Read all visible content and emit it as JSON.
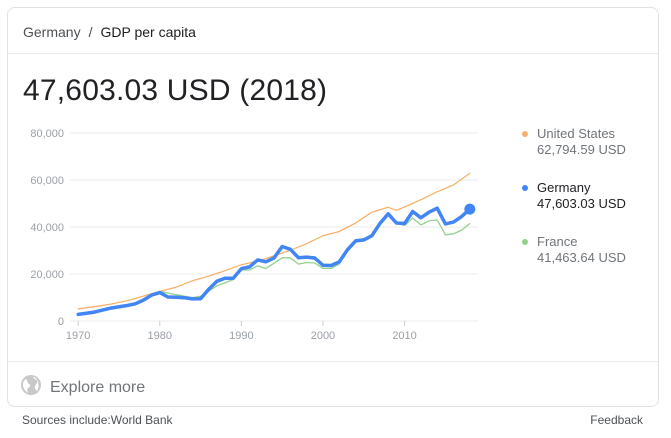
{
  "breadcrumb": {
    "parent": "Germany",
    "separator": "/",
    "current": "GDP per capita"
  },
  "headline": "47,603.03 USD (2018)",
  "legend": [
    {
      "name": "United States",
      "value": "62,794.59 USD",
      "color": "#f6b26b"
    },
    {
      "name": "Germany",
      "value": "47,603.03 USD",
      "color": "#4285f4"
    },
    {
      "name": "France",
      "value": "41,463.64 USD",
      "color": "#93d08c"
    }
  ],
  "explore": {
    "label": "Explore more",
    "icon": "globe-icon"
  },
  "footer": {
    "sources": "Sources include:World Bank",
    "feedback": "Feedback"
  },
  "chart_data": {
    "type": "line",
    "xlim": [
      1969,
      2019
    ],
    "ylim": [
      0,
      80000
    ],
    "x_ticks": [
      1970,
      1980,
      1990,
      2000,
      2010
    ],
    "y_ticks": [
      0,
      20000,
      40000,
      60000,
      80000
    ],
    "y_tick_labels": [
      "0",
      "20,000",
      "40,000",
      "60,000",
      "80,000"
    ],
    "grid": true,
    "highlight_series": "Germany",
    "series": [
      {
        "name": "United States",
        "color": "#f6b26b",
        "points": [
          [
            1970,
            5200
          ],
          [
            1972,
            6100
          ],
          [
            1974,
            7200
          ],
          [
            1976,
            8600
          ],
          [
            1978,
            10600
          ],
          [
            1980,
            12600
          ],
          [
            1982,
            14400
          ],
          [
            1984,
            17100
          ],
          [
            1986,
            19100
          ],
          [
            1988,
            21400
          ],
          [
            1990,
            23900
          ],
          [
            1992,
            25500
          ],
          [
            1994,
            27700
          ],
          [
            1996,
            30100
          ],
          [
            1998,
            32900
          ],
          [
            2000,
            36300
          ],
          [
            2002,
            38100
          ],
          [
            2004,
            41700
          ],
          [
            2006,
            46300
          ],
          [
            2008,
            48400
          ],
          [
            2009,
            47100
          ],
          [
            2010,
            48500
          ],
          [
            2012,
            51600
          ],
          [
            2014,
            55000
          ],
          [
            2016,
            57900
          ],
          [
            2018,
            62795
          ]
        ]
      },
      {
        "name": "France",
        "color": "#93d08c",
        "points": [
          [
            1970,
            2900
          ],
          [
            1972,
            3900
          ],
          [
            1974,
            5200
          ],
          [
            1976,
            6600
          ],
          [
            1978,
            8800
          ],
          [
            1980,
            12700
          ],
          [
            1982,
            11200
          ],
          [
            1984,
            9900
          ],
          [
            1985,
            10500
          ],
          [
            1987,
            15000
          ],
          [
            1989,
            17600
          ],
          [
            1990,
            21800
          ],
          [
            1991,
            21700
          ],
          [
            1992,
            23500
          ],
          [
            1993,
            22300
          ],
          [
            1995,
            26900
          ],
          [
            1996,
            26900
          ],
          [
            1997,
            24200
          ],
          [
            1998,
            24900
          ],
          [
            1999,
            24700
          ],
          [
            2000,
            22400
          ],
          [
            2001,
            22400
          ],
          [
            2002,
            24200
          ],
          [
            2003,
            29600
          ],
          [
            2004,
            33800
          ],
          [
            2005,
            34800
          ],
          [
            2006,
            36500
          ],
          [
            2007,
            41600
          ],
          [
            2008,
            45400
          ],
          [
            2009,
            41600
          ],
          [
            2010,
            40700
          ],
          [
            2011,
            43800
          ],
          [
            2012,
            40900
          ],
          [
            2013,
            42600
          ],
          [
            2014,
            43000
          ],
          [
            2015,
            36700
          ],
          [
            2016,
            37100
          ],
          [
            2017,
            38700
          ],
          [
            2018,
            41464
          ]
        ]
      },
      {
        "name": "Germany",
        "color": "#4285f4",
        "points": [
          [
            1970,
            2800
          ],
          [
            1972,
            3800
          ],
          [
            1974,
            5500
          ],
          [
            1976,
            6600
          ],
          [
            1977,
            7300
          ],
          [
            1978,
            8900
          ],
          [
            1979,
            11000
          ],
          [
            1980,
            12100
          ],
          [
            1981,
            10200
          ],
          [
            1982,
            10100
          ],
          [
            1983,
            9900
          ],
          [
            1984,
            9400
          ],
          [
            1985,
            9500
          ],
          [
            1986,
            13500
          ],
          [
            1987,
            16900
          ],
          [
            1988,
            18200
          ],
          [
            1989,
            18200
          ],
          [
            1990,
            22300
          ],
          [
            1991,
            23000
          ],
          [
            1992,
            26000
          ],
          [
            1993,
            25200
          ],
          [
            1994,
            26800
          ],
          [
            1995,
            31700
          ],
          [
            1996,
            30500
          ],
          [
            1997,
            26900
          ],
          [
            1998,
            27200
          ],
          [
            1999,
            26800
          ],
          [
            2000,
            23700
          ],
          [
            2001,
            23600
          ],
          [
            2002,
            25200
          ],
          [
            2003,
            30300
          ],
          [
            2004,
            34100
          ],
          [
            2005,
            34500
          ],
          [
            2006,
            36300
          ],
          [
            2007,
            41600
          ],
          [
            2008,
            45600
          ],
          [
            2009,
            41700
          ],
          [
            2010,
            41500
          ],
          [
            2011,
            46600
          ],
          [
            2012,
            43900
          ],
          [
            2013,
            46300
          ],
          [
            2014,
            48000
          ],
          [
            2015,
            41300
          ],
          [
            2016,
            42100
          ],
          [
            2017,
            44500
          ],
          [
            2018,
            47603
          ]
        ]
      }
    ]
  }
}
